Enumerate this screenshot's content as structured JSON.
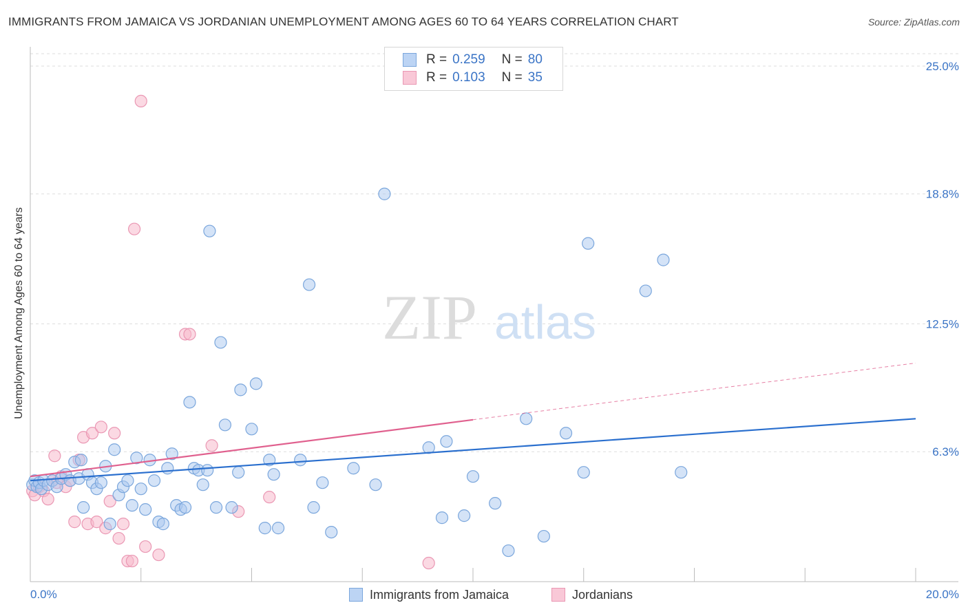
{
  "title": "IMMIGRANTS FROM JAMAICA VS JORDANIAN UNEMPLOYMENT AMONG AGES 60 TO 64 YEARS CORRELATION CHART",
  "source": "Source: ZipAtlas.com",
  "watermark": {
    "zip": "ZIP",
    "atlas": "atlas"
  },
  "legend": {
    "rows": [
      {
        "r_label": "R =",
        "r_value": "0.259",
        "n_label": "N =",
        "n_value": "80"
      },
      {
        "r_label": "R =",
        "r_value": "0.103",
        "n_label": "N =",
        "n_value": "35"
      }
    ]
  },
  "bottom_legend": [
    {
      "label": "Immigrants from Jamaica"
    },
    {
      "label": "Jordanians"
    }
  ],
  "colors": {
    "jamaica_fill": "#a9c8f0",
    "jamaica_stroke": "#7aa6dc",
    "jamaica_line": "#2a6fce",
    "jordan_fill": "#f7b9cc",
    "jordan_stroke": "#ea97b3",
    "jordan_line": "#e0608e",
    "axis_text": "#3a74c6",
    "grid": "#dddddd"
  },
  "chart_data": {
    "type": "scatter",
    "title": "IMMIGRANTS FROM JAMAICA VS JORDANIAN UNEMPLOYMENT AMONG AGES 60 TO 64 YEARS CORRELATION CHART",
    "xlabel": "",
    "ylabel": "Unemployment Among Ages 60 to 64 years",
    "xlim": [
      0,
      20
    ],
    "ylim": [
      0,
      25.6
    ],
    "x_tick_labels": [
      "0.0%",
      "20.0%"
    ],
    "y_ticks": [
      6.3,
      12.5,
      18.8,
      25.0
    ],
    "y_tick_labels": [
      "6.3%",
      "12.5%",
      "18.8%",
      "25.0%"
    ],
    "series": [
      {
        "name": "Immigrants from Jamaica",
        "R": 0.259,
        "N": 80,
        "trend": {
          "x0": 0,
          "y0": 4.9,
          "x1": 20,
          "y1": 7.9
        },
        "points": [
          [
            0.05,
            4.7
          ],
          [
            0.1,
            4.9
          ],
          [
            0.15,
            4.6
          ],
          [
            0.2,
            4.8
          ],
          [
            0.25,
            4.5
          ],
          [
            0.3,
            4.9
          ],
          [
            0.4,
            4.7
          ],
          [
            0.5,
            4.9
          ],
          [
            0.6,
            4.6
          ],
          [
            0.7,
            5.0
          ],
          [
            0.8,
            5.2
          ],
          [
            0.9,
            4.9
          ],
          [
            1.0,
            5.8
          ],
          [
            1.1,
            5.0
          ],
          [
            1.15,
            5.9
          ],
          [
            1.2,
            3.6
          ],
          [
            1.3,
            5.2
          ],
          [
            1.4,
            4.8
          ],
          [
            1.5,
            4.5
          ],
          [
            1.6,
            4.8
          ],
          [
            1.7,
            5.6
          ],
          [
            1.8,
            2.8
          ],
          [
            1.9,
            6.4
          ],
          [
            2.0,
            4.2
          ],
          [
            2.1,
            4.6
          ],
          [
            2.2,
            4.9
          ],
          [
            2.3,
            3.7
          ],
          [
            2.4,
            6.0
          ],
          [
            2.5,
            4.5
          ],
          [
            2.6,
            3.5
          ],
          [
            2.7,
            5.9
          ],
          [
            2.8,
            4.9
          ],
          [
            2.9,
            2.9
          ],
          [
            3.0,
            2.8
          ],
          [
            3.1,
            5.5
          ],
          [
            3.2,
            6.2
          ],
          [
            3.3,
            3.7
          ],
          [
            3.4,
            3.5
          ],
          [
            3.5,
            3.6
          ],
          [
            3.6,
            8.7
          ],
          [
            3.7,
            5.5
          ],
          [
            3.8,
            5.4
          ],
          [
            3.9,
            4.7
          ],
          [
            4.0,
            5.4
          ],
          [
            4.05,
            17.0
          ],
          [
            4.2,
            3.6
          ],
          [
            4.3,
            11.6
          ],
          [
            4.4,
            7.6
          ],
          [
            4.55,
            3.6
          ],
          [
            4.7,
            5.3
          ],
          [
            4.75,
            9.3
          ],
          [
            5.1,
            9.6
          ],
          [
            5.0,
            7.4
          ],
          [
            5.3,
            2.6
          ],
          [
            5.4,
            5.9
          ],
          [
            5.5,
            5.2
          ],
          [
            5.6,
            2.6
          ],
          [
            6.1,
            5.9
          ],
          [
            6.3,
            14.4
          ],
          [
            6.4,
            3.6
          ],
          [
            6.6,
            4.8
          ],
          [
            6.8,
            2.4
          ],
          [
            7.3,
            5.5
          ],
          [
            7.8,
            4.7
          ],
          [
            8.0,
            18.8
          ],
          [
            9.0,
            6.5
          ],
          [
            9.3,
            3.1
          ],
          [
            9.4,
            6.8
          ],
          [
            9.8,
            3.2
          ],
          [
            10.0,
            5.1
          ],
          [
            10.5,
            3.8
          ],
          [
            10.8,
            1.5
          ],
          [
            11.2,
            7.9
          ],
          [
            11.6,
            2.2
          ],
          [
            12.1,
            7.2
          ],
          [
            12.5,
            5.3
          ],
          [
            12.6,
            16.4
          ],
          [
            13.9,
            14.1
          ],
          [
            14.3,
            15.6
          ],
          [
            14.7,
            5.3
          ]
        ]
      },
      {
        "name": "Jordanians",
        "R": 0.103,
        "N": 35,
        "trend": {
          "x0": 0,
          "y0": 5.1,
          "x1": 20,
          "y1": 10.6,
          "solid_until_x": 10
        },
        "points": [
          [
            0.05,
            4.4
          ],
          [
            0.1,
            4.2
          ],
          [
            0.2,
            4.6
          ],
          [
            0.3,
            4.4
          ],
          [
            0.4,
            4.0
          ],
          [
            0.5,
            4.9
          ],
          [
            0.55,
            6.1
          ],
          [
            0.6,
            4.8
          ],
          [
            0.7,
            5.1
          ],
          [
            0.8,
            4.6
          ],
          [
            0.9,
            4.9
          ],
          [
            1.0,
            2.9
          ],
          [
            1.1,
            5.9
          ],
          [
            1.2,
            7.0
          ],
          [
            1.3,
            2.8
          ],
          [
            1.4,
            7.2
          ],
          [
            1.5,
            2.9
          ],
          [
            1.6,
            7.5
          ],
          [
            1.7,
            2.6
          ],
          [
            1.8,
            3.9
          ],
          [
            1.9,
            7.2
          ],
          [
            2.0,
            2.1
          ],
          [
            2.1,
            2.8
          ],
          [
            2.2,
            1.0
          ],
          [
            2.3,
            1.0
          ],
          [
            2.35,
            17.1
          ],
          [
            2.5,
            23.3
          ],
          [
            2.6,
            1.7
          ],
          [
            2.9,
            1.3
          ],
          [
            3.5,
            12.0
          ],
          [
            3.6,
            12.0
          ],
          [
            4.1,
            6.6
          ],
          [
            4.7,
            3.4
          ],
          [
            5.4,
            4.1
          ],
          [
            9.0,
            0.9
          ]
        ]
      }
    ]
  }
}
